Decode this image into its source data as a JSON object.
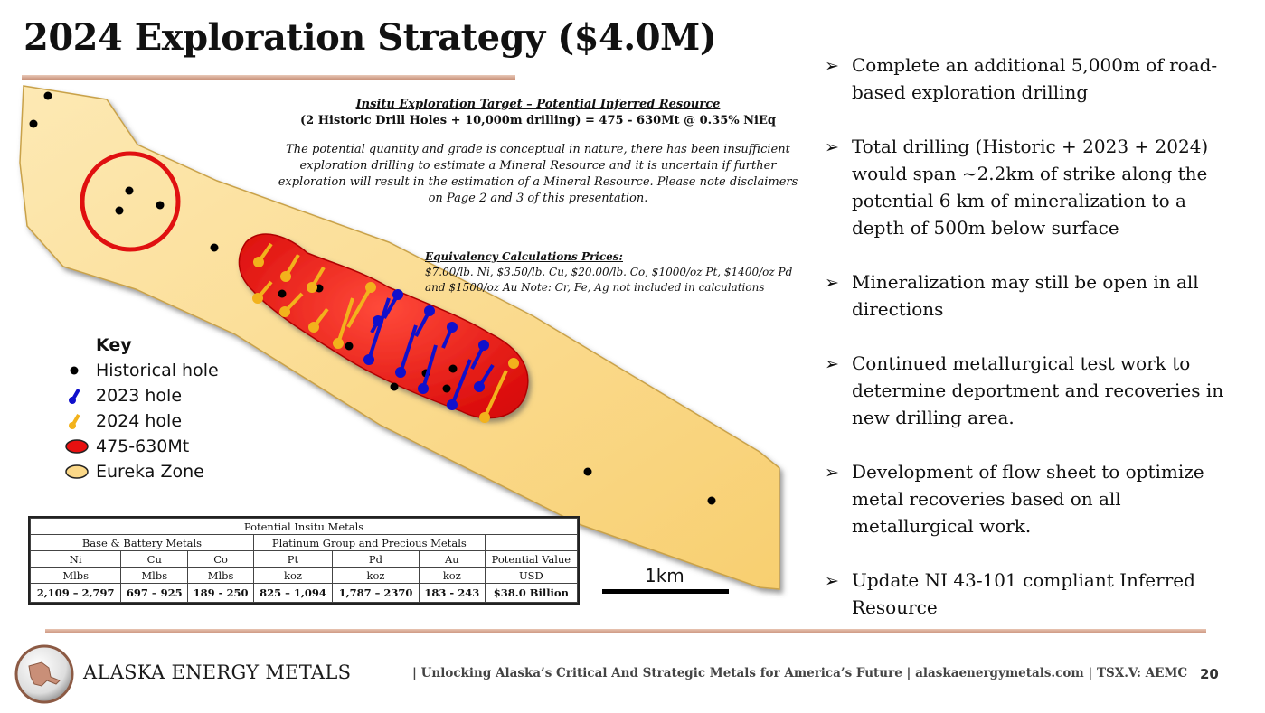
{
  "slide": {
    "title": "2024 Exploration Strategy ($4.0M)",
    "page_number": "20"
  },
  "target": {
    "heading": "Insitu Exploration Target – Potential Inferred Resource",
    "formula": "(2 Historic Drill Holes + 10,000m drilling) = 475 - 630Mt @ 0.35% NiEq",
    "disclaimer": "The potential quantity and grade is conceptual in nature, there has been insufficient exploration drilling to estimate a Mineral Resource and it is uncertain if further exploration will result in the estimation of a Mineral Resource. Please note disclaimers on Page 2 and 3 of this presentation."
  },
  "equivalency": {
    "heading": "Equivalency Calculations Prices:",
    "text": "$7.00/lb. Ni, $3.50/lb. Cu, $20.00/lb. Co, $1000/oz Pt, $1400/oz Pd and $1500/oz Au Note: Cr, Fe, Ag not included in calculations"
  },
  "key": {
    "title": "Key",
    "items": [
      {
        "label": "Historical hole",
        "color": "#000000",
        "icon": "black-dot"
      },
      {
        "label": "2023 hole",
        "color": "#1010cc",
        "icon": "blue-pin"
      },
      {
        "label": "2024 hole",
        "color": "#f2b21c",
        "icon": "yellow-pin"
      },
      {
        "label": "475-630Mt",
        "color": "#e81010",
        "icon": "red-ellipse"
      },
      {
        "label": "Eureka Zone",
        "color": "#fbd888",
        "icon": "yellow-ellipse"
      }
    ]
  },
  "scale": {
    "label": "1km"
  },
  "map": {
    "zone_color": "#fbd888",
    "target_color": "#e81010",
    "circle_color": "#e01010"
  },
  "bullets": [
    "Complete an additional 5,000m of road-based exploration drilling",
    "Total drilling (Historic + 2023 + 2024) would span ~2.2km of strike along the potential 6 km of mineralization to a depth of 500m below surface",
    "Mineralization may still be open in all directions",
    "Continued metallurgical test work to determine deportment and recoveries in new drilling area.",
    "Development of flow sheet to optimize metal recoveries based on all metallurgical work.",
    "Update NI 43-101 compliant Inferred Resource"
  ],
  "metals_table": {
    "title": "Potential Insitu Metals",
    "group_base": "Base & Battery Metals",
    "group_pgm": "Platinum Group and Precious Metals",
    "headers": [
      "Ni",
      "Cu",
      "Co",
      "Pt",
      "Pd",
      "Au",
      "Potential Value"
    ],
    "units": [
      "Mlbs",
      "Mlbs",
      "Mlbs",
      "koz",
      "koz",
      "koz",
      "USD"
    ],
    "values": [
      "2,109 – 2,797",
      "697 – 925",
      "189 - 250",
      "825 – 1,094",
      "1,787 – 2370",
      "183 - 243",
      "$38.0 Billion"
    ]
  },
  "footer": {
    "company": "ALASKA ENERGY METALS",
    "tagline": "| Unlocking Alaska’s Critical And Strategic Metals for America’s Future | alaskaenergymetals.com | TSX.V: AEMC"
  }
}
